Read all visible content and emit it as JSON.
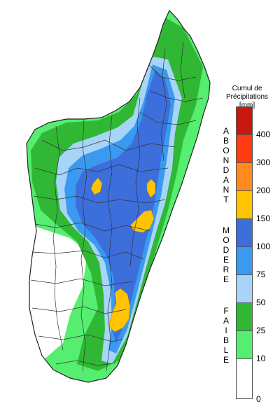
{
  "legend": {
    "title_line1": "Cumul de",
    "title_line2": "Précipitations",
    "unit": "[mm]",
    "classes": [
      {
        "from": 400,
        "to": 500,
        "color": "#c8180e"
      },
      {
        "from": 300,
        "to": 400,
        "color": "#ff3b10"
      },
      {
        "from": 200,
        "to": 300,
        "color": "#ff8a1e"
      },
      {
        "from": 150,
        "to": 200,
        "color": "#ffc400"
      },
      {
        "from": 100,
        "to": 150,
        "color": "#3c6fdc"
      },
      {
        "from": 75,
        "to": 100,
        "color": "#3a9af0"
      },
      {
        "from": 50,
        "to": 75,
        "color": "#a8d4f8"
      },
      {
        "from": 25,
        "to": 50,
        "color": "#30b834"
      },
      {
        "from": 10,
        "to": 25,
        "color": "#55ee70"
      },
      {
        "from": 0,
        "to": 10,
        "color": "#ffffff"
      }
    ],
    "ticks": [
      "400",
      "300",
      "200",
      "150",
      "100",
      "75",
      "50",
      "25",
      "10",
      "0"
    ],
    "categories": [
      {
        "word": "ABONDANT",
        "letters": [
          "A",
          "B",
          "O",
          "N",
          "D",
          "A",
          "N",
          "T"
        ]
      },
      {
        "word": "MODERE",
        "letters": [
          "M",
          "O",
          "D",
          "E",
          "R",
          "E"
        ]
      },
      {
        "word": "FAIBLE",
        "letters": [
          "F",
          "A",
          "I",
          "B",
          "L",
          "E"
        ]
      }
    ]
  },
  "map": {
    "region": "Madagascar",
    "colors": {
      "outline": "#222222",
      "district_lines": "#333333",
      "white": "#ffffff",
      "green_dark": "#30b834",
      "green_light": "#55ee70",
      "blue_light": "#a8d4f8",
      "blue_mid": "#3a9af0",
      "blue_dark": "#3c6fdc",
      "yellow": "#ffc400"
    }
  }
}
